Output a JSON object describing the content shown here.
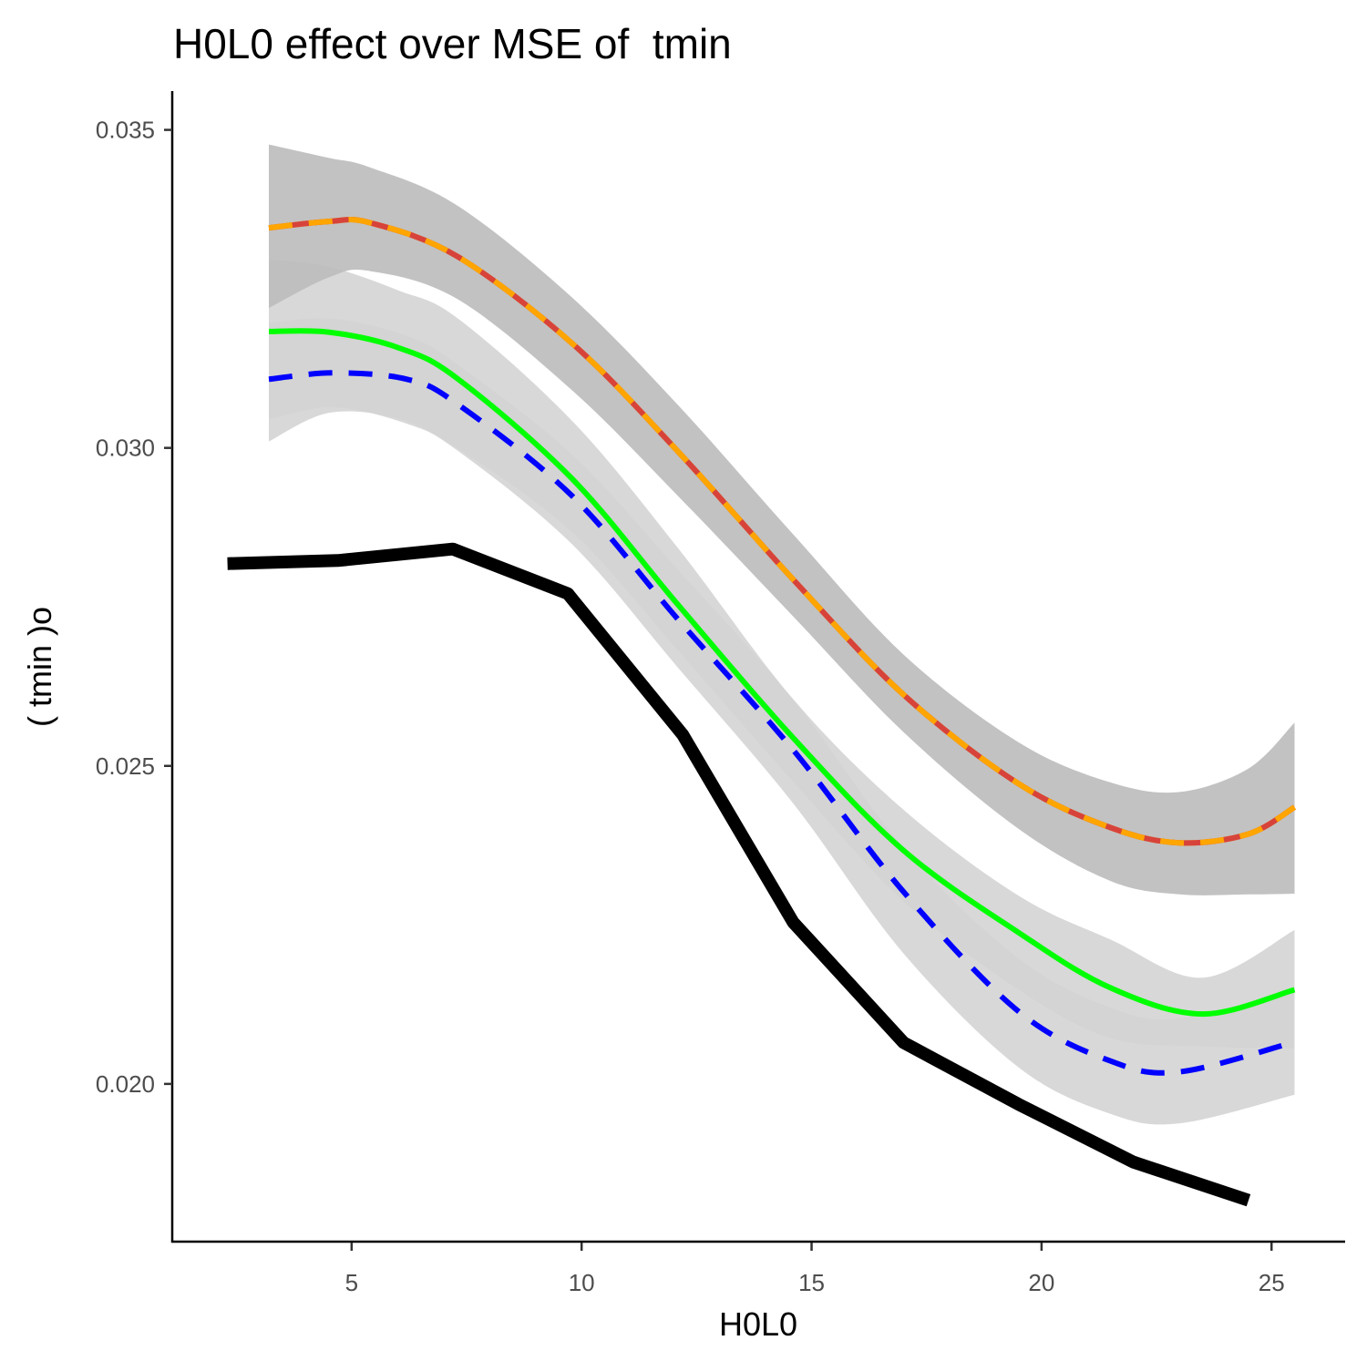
{
  "chart_data": {
    "type": "line",
    "title": "H0L0 effect over MSE of  tmin",
    "xlabel": "H0L0",
    "ylabel": "( tmin )o",
    "xlim": [
      1.1,
      26.6
    ],
    "ylim": [
      0.01752,
      0.03561
    ],
    "x_ticks": [
      5,
      10,
      15,
      20,
      25
    ],
    "x_tick_labels": [
      "5",
      "10",
      "15",
      "20",
      "25"
    ],
    "y_ticks": [
      0.02,
      0.025,
      0.03,
      0.035
    ],
    "y_tick_labels": [
      "0.020",
      "0.025",
      "0.030",
      "0.035"
    ],
    "grid": false,
    "legend": "none",
    "series": [
      {
        "style": "solid",
        "color": "#000000",
        "width": 14,
        "x": [
          2.3,
          4.7,
          7.2,
          9.7,
          12.2,
          14.6,
          17.0,
          19.5,
          22.0,
          24.5
        ],
        "y": [
          0.02818,
          0.02823,
          0.02841,
          0.02771,
          0.02549,
          0.02254,
          0.02065,
          0.01968,
          0.01877,
          0.01817
        ]
      },
      {
        "style": "solid",
        "color": "#ffa500",
        "width": 6,
        "band_color": "#bdbdbd",
        "x": [
          3.2,
          4.5,
          5.4,
          7.3,
          9.8,
          12.1,
          14.6,
          17.0,
          19.5,
          21.5,
          23.0,
          24.5,
          25.5
        ],
        "y": [
          0.03346,
          0.03356,
          0.03354,
          0.03301,
          0.03164,
          0.02994,
          0.02793,
          0.02612,
          0.02472,
          0.02403,
          0.02379,
          0.02393,
          0.02435
        ],
        "lower": [
          0.0322,
          0.03268,
          0.03278,
          0.03234,
          0.0309,
          0.02924,
          0.02735,
          0.02553,
          0.02401,
          0.02319,
          0.02298,
          0.02298,
          0.02299
        ],
        "upper": [
          0.03477,
          0.03456,
          0.03441,
          0.03381,
          0.03236,
          0.03067,
          0.02864,
          0.02675,
          0.02537,
          0.02474,
          0.02459,
          0.02496,
          0.02568
        ]
      },
      {
        "style": "solid",
        "color": "#d7433a",
        "width": 6,
        "x": [
          3.2,
          4.5,
          5.4,
          7.3,
          9.8,
          12.1,
          14.6,
          17.0,
          19.5,
          21.5,
          23.0,
          24.5,
          25.5
        ],
        "y": [
          0.03346,
          0.03356,
          0.03354,
          0.03301,
          0.03164,
          0.02994,
          0.02793,
          0.02612,
          0.02472,
          0.02403,
          0.02379,
          0.02393,
          0.02435
        ]
      },
      {
        "style": "solid",
        "color": "#00ff00",
        "width": 6,
        "band_color": "#d4d4d4",
        "x": [
          3.2,
          4.5,
          6.0,
          7.3,
          9.8,
          12.1,
          14.6,
          17.0,
          19.5,
          21.5,
          23.5,
          25.5
        ],
        "y": [
          0.03183,
          0.03182,
          0.03158,
          0.03109,
          0.02951,
          0.02753,
          0.02544,
          0.02367,
          0.02238,
          0.02151,
          0.0211,
          0.02148
        ],
        "lower": [
          0.0301,
          0.03055,
          0.03046,
          0.02999,
          0.02867,
          0.02681,
          0.02475,
          0.02287,
          0.02148,
          0.02072,
          0.02059,
          0.02056
        ],
        "upper": [
          0.03296,
          0.03285,
          0.03248,
          0.03204,
          0.03042,
          0.02842,
          0.02605,
          0.02431,
          0.02296,
          0.02227,
          0.02167,
          0.02242
        ]
      },
      {
        "style": "dashed",
        "color": "#0000ff",
        "width": 6,
        "band_color": "#d4d4d4",
        "x": [
          3.2,
          4.6,
          6.2,
          7.3,
          9.8,
          12.1,
          14.6,
          17.0,
          19.5,
          21.5,
          23.0,
          25.5
        ],
        "y": [
          0.03108,
          0.03118,
          0.03108,
          0.03069,
          0.02924,
          0.0273,
          0.02525,
          0.02302,
          0.02114,
          0.02036,
          0.02019,
          0.02066
        ],
        "lower": [
          0.03045,
          0.03064,
          0.03038,
          0.02996,
          0.02848,
          0.02654,
          0.02441,
          0.02205,
          0.02026,
          0.01953,
          0.01938,
          0.01983
        ],
        "upper": [
          0.03197,
          0.03203,
          0.03176,
          0.03131,
          0.02989,
          0.02808,
          0.02604,
          0.02371,
          0.02197,
          0.0212,
          0.02103,
          0.02148
        ]
      }
    ]
  }
}
